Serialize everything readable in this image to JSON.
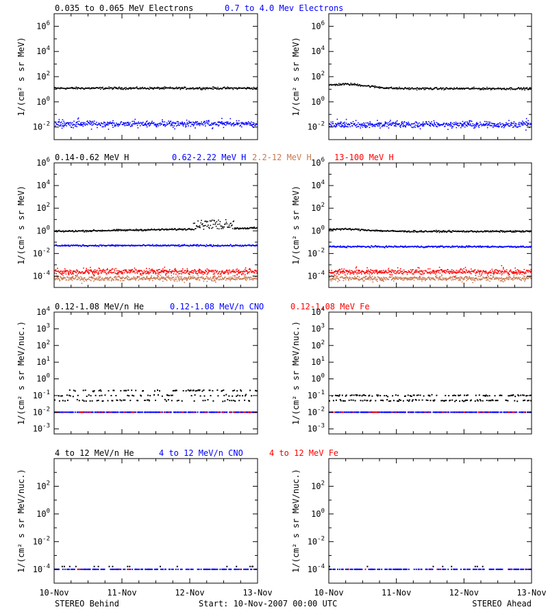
{
  "colors": {
    "black": "#000000",
    "blue": "#0000ff",
    "tan": "#c87850",
    "red": "#ff0000"
  },
  "chart_data": [
    {
      "id": "electrons",
      "type": "scatter",
      "log_scale": true,
      "ylabel": "1/(cm² s sr MeV)",
      "ylim_exp": [
        -3,
        7
      ],
      "tick_exps": [
        -2,
        0,
        2,
        4,
        6
      ],
      "legend": [
        {
          "text": "0.035 to 0.065 MeV Electrons",
          "color": "black"
        },
        {
          "text": "0.7 to 4.0 Mev Electrons",
          "color": "blue"
        }
      ],
      "panels": {
        "behind": {
          "series": [
            {
              "name": "0.035 to 0.065 MeV Electrons",
              "color": "black",
              "base_exp": 1.08,
              "noise": 0.07
            },
            {
              "name": "0.7 to 4.0 Mev Electrons",
              "color": "blue",
              "base_exp": -1.75,
              "noise": 0.18
            }
          ]
        },
        "ahead": {
          "series": [
            {
              "name": "0.035 to 0.065 MeV Electrons",
              "color": "black",
              "base_exp": 1.05,
              "noise": 0.07,
              "bump": {
                "x": 0.25,
                "height": 0.35,
                "width": 0.45
              }
            },
            {
              "name": "0.7 to 4.0 Mev Electrons",
              "color": "blue",
              "base_exp": -1.8,
              "noise": 0.18
            }
          ]
        }
      }
    },
    {
      "id": "protons",
      "type": "scatter",
      "log_scale": true,
      "ylabel": "1/(cm² s sr MeV)",
      "ylim_exp": [
        -5,
        6
      ],
      "tick_exps": [
        -4,
        -2,
        0,
        2,
        4,
        6
      ],
      "legend": [
        {
          "text": "0.14-0.62 MeV H",
          "color": "black"
        },
        {
          "text": "0.62-2.22 MeV H",
          "color": "blue"
        },
        {
          "text": "2.2-12 MeV H",
          "color": "tan"
        },
        {
          "text": "13-100 MeV H",
          "color": "red"
        }
      ],
      "panels": {
        "behind": {
          "series": [
            {
              "name": "0.14-0.62 MeV H",
              "color": "black",
              "base_exp": -0.05,
              "noise": 0.06,
              "trend": 0.3,
              "burst": {
                "x": 2.35,
                "height": 0.8,
                "width": 0.12
              }
            },
            {
              "name": "0.62-2.22 MeV H",
              "color": "blue",
              "base_exp": -1.3,
              "noise": 0.06
            },
            {
              "name": "2.2-12 MeV H",
              "color": "tan",
              "base_exp": -4.2,
              "noise": 0.15
            },
            {
              "name": "13-100 MeV H",
              "color": "red",
              "base_exp": -3.6,
              "noise": 0.18
            }
          ]
        },
        "ahead": {
          "series": [
            {
              "name": "0.14-0.62 MeV H",
              "color": "black",
              "base_exp": -0.05,
              "noise": 0.06,
              "bump": {
                "x": 0.2,
                "height": 0.2,
                "width": 0.5
              }
            },
            {
              "name": "0.62-2.22 MeV H",
              "color": "blue",
              "base_exp": -1.4,
              "noise": 0.06
            },
            {
              "name": "2.2-12 MeV H",
              "color": "tan",
              "base_exp": -4.2,
              "noise": 0.15
            },
            {
              "name": "13-100 MeV H",
              "color": "red",
              "base_exp": -3.6,
              "noise": 0.18
            }
          ]
        }
      }
    },
    {
      "id": "low-energy-ions",
      "type": "scatter",
      "log_scale": true,
      "ylabel": "1/(cm² s sr MeV/nuc.)",
      "ylim_exp": [
        -3.3,
        4
      ],
      "tick_exps": [
        -3,
        -2,
        -1,
        0,
        1,
        2,
        3,
        4
      ],
      "legend": [
        {
          "text": "0.12-1.08 MeV/n He",
          "color": "black"
        },
        {
          "text": "0.12-1.08 MeV/n CNO",
          "color": "blue"
        },
        {
          "text": "0.12-1.08 MeV Fe",
          "color": "red"
        }
      ],
      "panels": {
        "behind": {
          "series": [
            {
              "name": "0.12-1.08 MeV/n He",
              "color": "black",
              "levels": [
                -1.3,
                -1.0,
                -0.7
              ],
              "fill": 0.6
            },
            {
              "name": "0.12-1.08 MeV/n CNO",
              "color": "blue",
              "levels": [
                -2.0
              ],
              "fill": 0.7
            },
            {
              "name": "0.12-1.08 MeV Fe",
              "color": "red",
              "levels": [
                -2.0
              ],
              "fill": 0.12
            }
          ]
        },
        "ahead": {
          "series": [
            {
              "name": "0.12-1.08 MeV/n He",
              "color": "black",
              "levels": [
                -1.3,
                -1.0
              ],
              "fill": 0.6
            },
            {
              "name": "0.12-1.08 MeV/n CNO",
              "color": "blue",
              "levels": [
                -2.0
              ],
              "fill": 0.7
            },
            {
              "name": "0.12-1.08 MeV Fe",
              "color": "red",
              "levels": [
                -2.0
              ],
              "fill": 0.12
            }
          ]
        }
      }
    },
    {
      "id": "high-energy-ions",
      "type": "scatter",
      "log_scale": true,
      "ylabel": "1/(cm² s sr MeV/nuc.)",
      "ylim_exp": [
        -5,
        4
      ],
      "tick_exps": [
        -4,
        -2,
        0,
        2
      ],
      "legend": [
        {
          "text": "4 to 12 MeV/n He",
          "color": "black"
        },
        {
          "text": "4 to 12 MeV/n CNO",
          "color": "blue"
        },
        {
          "text": "4 to 12 MeV Fe",
          "color": "red"
        }
      ],
      "panels": {
        "behind": {
          "series": [
            {
              "name": "4 to 12 MeV/n He",
              "color": "black",
              "levels": [
                -3.8
              ],
              "fill": 0.04
            },
            {
              "name": "4 to 12 MeV/n CNO",
              "color": "blue",
              "levels": [
                -4.0
              ],
              "fill": 0.45
            },
            {
              "name": "4 to 12 MeV Fe",
              "color": "red",
              "levels": [
                -4.0
              ],
              "fill": 0.02
            }
          ]
        },
        "ahead": {
          "series": [
            {
              "name": "4 to 12 MeV/n He",
              "color": "black",
              "levels": [
                -3.8
              ],
              "fill": 0.04
            },
            {
              "name": "4 to 12 MeV/n CNO",
              "color": "blue",
              "levels": [
                -4.0
              ],
              "fill": 0.5
            },
            {
              "name": "4 to 12 MeV Fe",
              "color": "red",
              "levels": [
                -4.0
              ],
              "fill": 0.02
            }
          ]
        }
      }
    }
  ],
  "x_axis": {
    "range_days": [
      0,
      3
    ],
    "tick_labels": [
      "10-Nov",
      "11-Nov",
      "12-Nov",
      "13-Nov"
    ]
  },
  "footer": {
    "left": "STEREO Behind",
    "center": "Start: 10-Nov-2007 00:00 UTC",
    "right": "STEREO Ahead"
  }
}
